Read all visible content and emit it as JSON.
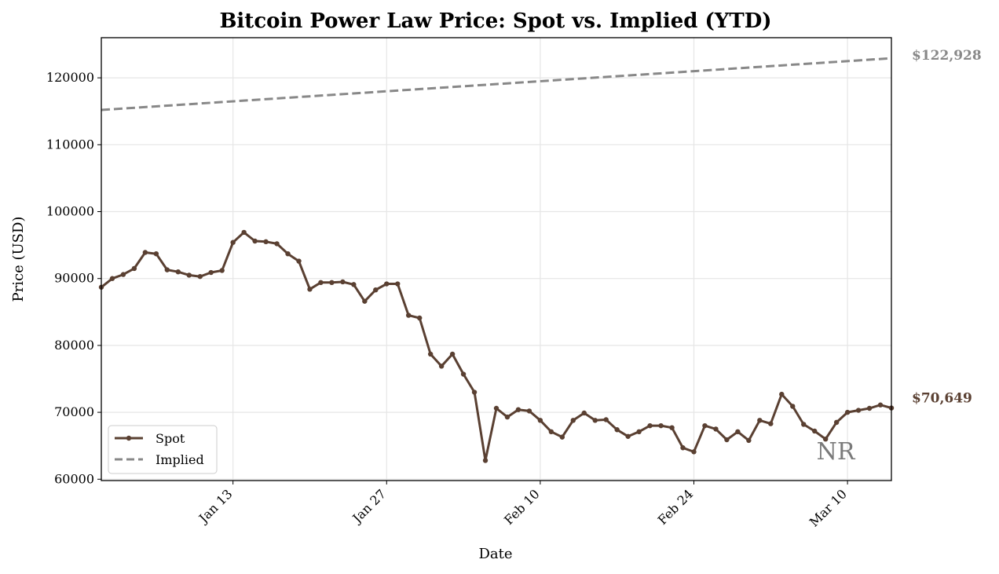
{
  "chart_data": {
    "type": "line",
    "title": "Bitcoin Power Law Price: Spot vs. Implied (YTD)",
    "xlabel": "Date",
    "ylabel": "Price (USD)",
    "xlim": [
      "2025-01-01",
      "2025-03-14"
    ],
    "ylim": [
      59800,
      126000
    ],
    "y_ticks": [
      60000,
      70000,
      80000,
      90000,
      100000,
      110000,
      120000
    ],
    "x_ticks": [
      {
        "date": "2025-01-13",
        "label": "Jan 13"
      },
      {
        "date": "2025-01-27",
        "label": "Jan 27"
      },
      {
        "date": "2025-02-10",
        "label": "Feb 10"
      },
      {
        "date": "2025-02-24",
        "label": "Feb 24"
      },
      {
        "date": "2025-03-10",
        "label": "Mar 10"
      }
    ],
    "grid": true,
    "legend_position": "lower-left",
    "x": [
      "2025-01-01",
      "2025-01-02",
      "2025-01-03",
      "2025-01-04",
      "2025-01-05",
      "2025-01-06",
      "2025-01-07",
      "2025-01-08",
      "2025-01-09",
      "2025-01-10",
      "2025-01-11",
      "2025-01-12",
      "2025-01-13",
      "2025-01-14",
      "2025-01-15",
      "2025-01-16",
      "2025-01-17",
      "2025-01-18",
      "2025-01-19",
      "2025-01-20",
      "2025-01-21",
      "2025-01-22",
      "2025-01-23",
      "2025-01-24",
      "2025-01-25",
      "2025-01-26",
      "2025-01-27",
      "2025-01-28",
      "2025-01-29",
      "2025-01-30",
      "2025-01-31",
      "2025-02-01",
      "2025-02-02",
      "2025-02-03",
      "2025-02-04",
      "2025-02-05",
      "2025-02-06",
      "2025-02-07",
      "2025-02-08",
      "2025-02-09",
      "2025-02-10",
      "2025-02-11",
      "2025-02-12",
      "2025-02-13",
      "2025-02-14",
      "2025-02-15",
      "2025-02-16",
      "2025-02-17",
      "2025-02-18",
      "2025-02-19",
      "2025-02-20",
      "2025-02-21",
      "2025-02-22",
      "2025-02-23",
      "2025-02-24",
      "2025-02-25",
      "2025-02-26",
      "2025-02-27",
      "2025-02-28",
      "2025-03-01",
      "2025-03-02",
      "2025-03-03",
      "2025-03-04",
      "2025-03-05",
      "2025-03-06",
      "2025-03-07",
      "2025-03-08",
      "2025-03-09",
      "2025-03-10",
      "2025-03-11",
      "2025-03-12",
      "2025-03-13",
      "2025-03-14"
    ],
    "series": [
      {
        "name": "Spot",
        "color": "#5a4032",
        "style": "solid-markers",
        "values": [
          88700,
          90000,
          90600,
          91500,
          93900,
          93700,
          91300,
          91000,
          90500,
          90300,
          90900,
          91200,
          95400,
          96900,
          95600,
          95500,
          95200,
          93700,
          92600,
          88400,
          89400,
          89400,
          89500,
          89100,
          86600,
          88300,
          89200,
          89200,
          84500,
          84100,
          78700,
          76900,
          78700,
          75700,
          73000,
          62800,
          70600,
          69300,
          70400,
          70200,
          68800,
          67100,
          66300,
          68800,
          69900,
          68800,
          68900,
          67400,
          66400,
          67100,
          68000,
          68000,
          67700,
          64700,
          64100,
          68000,
          67500,
          65900,
          67100,
          65800,
          68800,
          68300,
          72700,
          70900,
          68200,
          67200,
          66000,
          68500,
          70000,
          70300,
          70600,
          71100,
          70649
        ]
      },
      {
        "name": "Implied",
        "color": "#888888",
        "style": "dashed",
        "start_value": 115200,
        "end_value": 122928
      }
    ],
    "annotations": [
      {
        "text": "$122,928",
        "series": "Implied",
        "color": "#888888"
      },
      {
        "text": "$70,649",
        "series": "Spot",
        "color": "#5a4032"
      }
    ],
    "watermark": "NR"
  }
}
